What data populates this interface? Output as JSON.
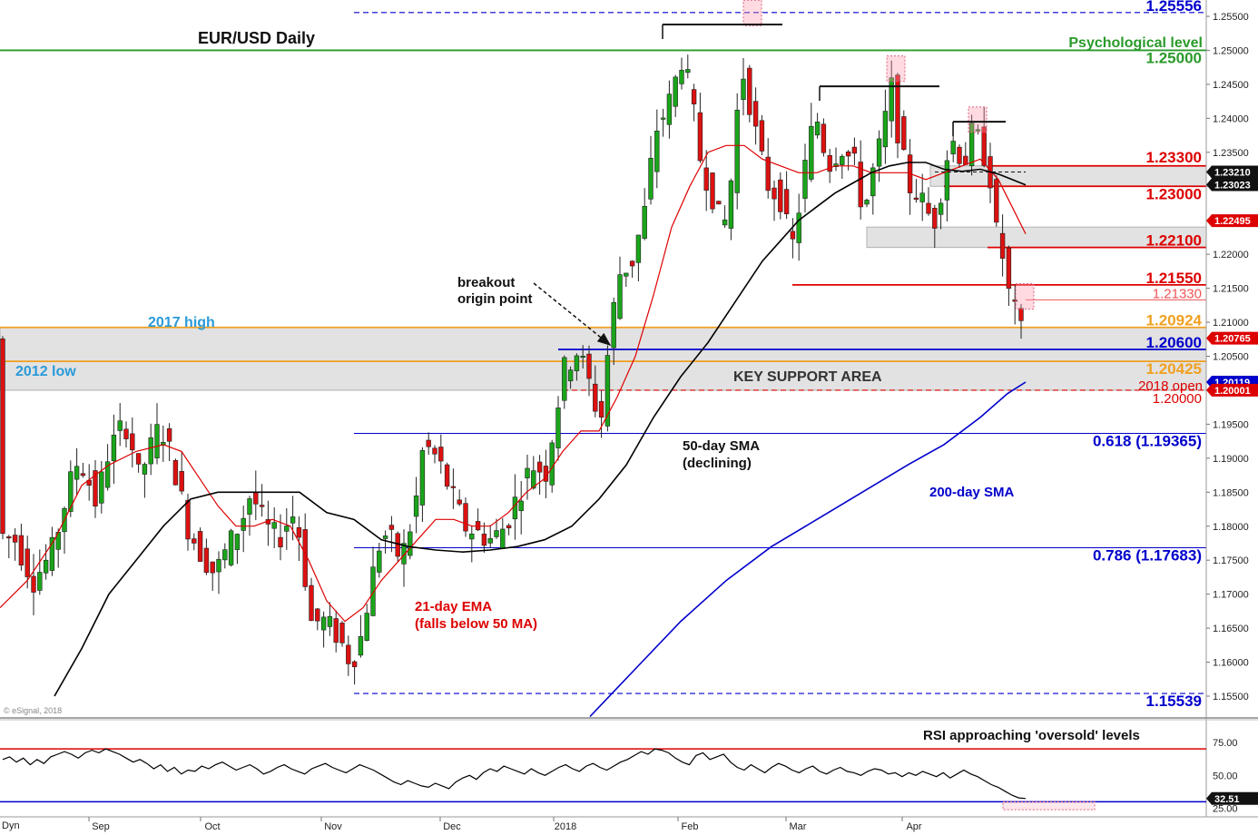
{
  "chart_data": [
    {
      "type": "candlestick",
      "title": "EUR/USD Daily",
      "ylim": [
        1.1515,
        1.2565
      ],
      "y_ticks": [
        "1.25500",
        "1.25000",
        "1.24500",
        "1.24000",
        "1.23500",
        "1.23000",
        "1.22500",
        "1.22000",
        "1.21500",
        "1.21000",
        "1.20500",
        "1.20000",
        "1.19500",
        "1.19000",
        "1.18500",
        "1.18000",
        "1.17500",
        "1.17000",
        "1.16500",
        "1.16000",
        "1.15500"
      ],
      "x_ticks": [
        "Sep",
        "Oct",
        "Nov",
        "Dec",
        "2018",
        "Feb",
        "Mar",
        "Apr"
      ],
      "levels": [
        {
          "name": "level-125556",
          "label": "1.25556",
          "value": 1.25556,
          "color": "#0000cc",
          "style": "dashed"
        },
        {
          "name": "level-125000",
          "label": "1.25000",
          "value": 1.25,
          "color": "#2a9a2a",
          "style": "solid"
        },
        {
          "name": "level-123300",
          "label": "1.23300",
          "value": 1.233,
          "color": "#dd0000",
          "style": "solid"
        },
        {
          "name": "level-123000",
          "label": "1.23000",
          "value": 1.23,
          "color": "#dd0000",
          "style": "solid"
        },
        {
          "name": "level-122100",
          "label": "1.22100",
          "value": 1.221,
          "color": "#dd0000",
          "style": "solid"
        },
        {
          "name": "level-121550",
          "label": "1.21550",
          "value": 1.2155,
          "color": "#dd0000",
          "style": "solid"
        },
        {
          "name": "level-121330",
          "label": "1.21330",
          "value": 1.2133,
          "color": "#ee5555",
          "style": "thin"
        },
        {
          "name": "level-120924",
          "label": "1.20924",
          "value": 1.20924,
          "color": "#f0a020",
          "style": "solid"
        },
        {
          "name": "level-120600",
          "label": "1.20600",
          "value": 1.206,
          "color": "#0000cc",
          "style": "solid"
        },
        {
          "name": "level-120425",
          "label": "1.20425",
          "value": 1.20425,
          "color": "#f0a020",
          "style": "solid"
        },
        {
          "name": "level-120000",
          "label": "1.20000",
          "value": 1.2,
          "color": "#dd0000",
          "style": "dashed"
        },
        {
          "name": "level-fib-0618",
          "label": "0.618 (1.19365)",
          "value": 1.19365,
          "color": "#0000cc",
          "style": "thin"
        },
        {
          "name": "level-fib-0786",
          "label": "0.786 (1.17683)",
          "value": 1.17683,
          "color": "#0000cc",
          "style": "thin"
        },
        {
          "name": "level-115539",
          "label": "1.15539",
          "value": 1.15539,
          "color": "#0000cc",
          "style": "dashed"
        }
      ],
      "price_tags": [
        {
          "name": "tag-123210",
          "label": "1.23210",
          "value": 1.2321,
          "color": "#111111"
        },
        {
          "name": "tag-123023",
          "label": "1.23023",
          "value": 1.23023,
          "color": "#111111"
        },
        {
          "name": "tag-122495",
          "label": "1.22495",
          "value": 1.22495,
          "color": "#dd0000"
        },
        {
          "name": "tag-120765",
          "label": "1.20765",
          "value": 1.20765,
          "color": "#dd0000"
        },
        {
          "name": "tag-120119",
          "label": "1.20119",
          "value": 1.20119,
          "color": "#0000cc"
        },
        {
          "name": "tag-120001",
          "label": "1.20001",
          "value": 1.20001,
          "color": "#dd0000"
        }
      ],
      "zones": [
        {
          "name": "key-support-zone",
          "low": 1.2,
          "high": 1.20924
        },
        {
          "name": "resistance-zone-upper",
          "low": 1.23,
          "high": 1.233
        },
        {
          "name": "resistance-zone-lower",
          "low": 1.221,
          "high": 1.224
        }
      ],
      "annotations": {
        "title": "EUR/USD Daily",
        "psych": "Psychological level",
        "high2017": "2017 high",
        "low2012": "2012 low",
        "breakout1": "breakout",
        "breakout2": "origin point",
        "key_support": "KEY SUPPORT AREA",
        "open2018": "2018 open",
        "sma50_1": "50-day SMA",
        "sma50_2": "(declining)",
        "sma200": "200-day SMA",
        "ema21_1": "21-day EMA",
        "ema21_2": "(falls below 50 MA)",
        "copyright": "© eSignal, 2018"
      },
      "series": [
        {
          "name": "21-day EMA",
          "color": "#dd0000",
          "points": [
            [
              0,
              1.168
            ],
            [
              30,
              1.172
            ],
            [
              60,
              1.178
            ],
            [
              90,
              1.186
            ],
            [
              120,
              1.189
            ],
            [
              150,
              1.191
            ],
            [
              180,
              1.192
            ],
            [
              200,
              1.191
            ],
            [
              220,
              1.187
            ],
            [
              240,
              1.183
            ],
            [
              260,
              1.18
            ],
            [
              280,
              1.18
            ],
            [
              300,
              1.181
            ],
            [
              320,
              1.18
            ],
            [
              340,
              1.175
            ],
            [
              360,
              1.169
            ],
            [
              380,
              1.166
            ],
            [
              400,
              1.168
            ],
            [
              420,
              1.172
            ],
            [
              440,
              1.175
            ],
            [
              460,
              1.178
            ],
            [
              480,
              1.181
            ],
            [
              500,
              1.181
            ],
            [
              520,
              1.18
            ],
            [
              540,
              1.18
            ],
            [
              560,
              1.182
            ],
            [
              580,
              1.185
            ],
            [
              600,
              1.187
            ],
            [
              620,
              1.191
            ],
            [
              640,
              1.194
            ],
            [
              660,
              1.194
            ],
            [
              680,
              1.199
            ],
            [
              700,
              1.205
            ],
            [
              720,
              1.214
            ],
            [
              740,
              1.224
            ],
            [
              760,
              1.23
            ],
            [
              780,
              1.235
            ],
            [
              800,
              1.236
            ],
            [
              820,
              1.236
            ],
            [
              840,
              1.234
            ],
            [
              860,
              1.233
            ],
            [
              880,
              1.232
            ],
            [
              900,
              1.232
            ],
            [
              920,
              1.233
            ],
            [
              940,
              1.233
            ],
            [
              960,
              1.232
            ],
            [
              980,
              1.232
            ],
            [
              1000,
              1.232
            ],
            [
              1020,
              1.231
            ],
            [
              1040,
              1.232
            ],
            [
              1060,
              1.233
            ],
            [
              1080,
              1.234
            ],
            [
              1100,
              1.231
            ],
            [
              1115,
              1.227
            ],
            [
              1130,
              1.223
            ]
          ]
        },
        {
          "name": "50-day SMA",
          "color": "#000000",
          "points": [
            [
              60,
              1.155
            ],
            [
              90,
              1.162
            ],
            [
              120,
              1.17
            ],
            [
              150,
              1.175
            ],
            [
              180,
              1.18
            ],
            [
              210,
              1.184
            ],
            [
              240,
              1.185
            ],
            [
              270,
              1.185
            ],
            [
              300,
              1.185
            ],
            [
              330,
              1.185
            ],
            [
              360,
              1.182
            ],
            [
              390,
              1.181
            ],
            [
              420,
              1.178
            ],
            [
              450,
              1.177
            ],
            [
              480,
              1.1765
            ],
            [
              510,
              1.1762
            ],
            [
              540,
              1.1765
            ],
            [
              570,
              1.177
            ],
            [
              600,
              1.178
            ],
            [
              630,
              1.18
            ],
            [
              660,
              1.184
            ],
            [
              690,
              1.189
            ],
            [
              720,
              1.196
            ],
            [
              750,
              1.202
            ],
            [
              780,
              1.207
            ],
            [
              800,
              1.211
            ],
            [
              820,
              1.215
            ],
            [
              840,
              1.219
            ],
            [
              860,
              1.222
            ],
            [
              880,
              1.225
            ],
            [
              900,
              1.227
            ],
            [
              920,
              1.229
            ],
            [
              940,
              1.2305
            ],
            [
              960,
              1.232
            ],
            [
              980,
              1.233
            ],
            [
              1000,
              1.2335
            ],
            [
              1020,
              1.2335
            ],
            [
              1040,
              1.2325
            ],
            [
              1060,
              1.2322
            ],
            [
              1080,
              1.2325
            ],
            [
              1100,
              1.2318
            ],
            [
              1115,
              1.231
            ],
            [
              1130,
              1.2302
            ]
          ]
        },
        {
          "name": "200-day SMA",
          "color": "#0000cc",
          "points": [
            [
              650,
              1.152
            ],
            [
              700,
              1.159
            ],
            [
              750,
              1.166
            ],
            [
              800,
              1.172
            ],
            [
              850,
              1.177
            ],
            [
              900,
              1.181
            ],
            [
              950,
              1.185
            ],
            [
              1000,
              1.189
            ],
            [
              1040,
              1.192
            ],
            [
              1080,
              1.196
            ],
            [
              1110,
              1.1995
            ],
            [
              1130,
              1.20119
            ]
          ]
        }
      ],
      "annotation_boxes": [
        {
          "name": "high-marker-feb",
          "x": 829,
          "value": 1.2555
        },
        {
          "name": "high-marker-mar",
          "x": 987,
          "value": 1.2473
        },
        {
          "name": "high-marker-apr",
          "x": 1077,
          "value": 1.2398
        },
        {
          "name": "low-marker-apr",
          "x": 1129,
          "value": 1.2138
        }
      ],
      "top_lines": [
        {
          "name": "double-top-line-1",
          "x1": 730,
          "x2": 862,
          "value": 1.2538
        },
        {
          "name": "double-top-line-2",
          "x1": 903,
          "x2": 1035,
          "value": 1.2447
        },
        {
          "name": "double-top-line-3",
          "x1": 1050,
          "x2": 1108,
          "value": 1.2395
        }
      ]
    },
    {
      "type": "line",
      "title": "RSI approaching 'oversold' levels",
      "ylim": [
        20,
        90
      ],
      "y_ticks": [
        "75.00",
        "50.00",
        "25.00"
      ],
      "overbought": 70,
      "oversold": 30,
      "last_value_label": "32.51",
      "last_value": 32.51,
      "series": [
        {
          "name": "RSI",
          "color": "#000000",
          "values": [
            62,
            64,
            60,
            63,
            58,
            62,
            59,
            64,
            66,
            68,
            66,
            63,
            67,
            69,
            67,
            70,
            68,
            66,
            63,
            60,
            62,
            59,
            55,
            58,
            53,
            56,
            51,
            54,
            53,
            57,
            55,
            58,
            60,
            57,
            54,
            56,
            58,
            55,
            51,
            53,
            56,
            58,
            55,
            53,
            51,
            55,
            57,
            59,
            56,
            54,
            52,
            55,
            58,
            56,
            54,
            51,
            48,
            45,
            43,
            46,
            44,
            42,
            41,
            44,
            42,
            40,
            45,
            48,
            50,
            47,
            52,
            55,
            53,
            57,
            55,
            53,
            51,
            55,
            52,
            50,
            53,
            56,
            58,
            55,
            53,
            57,
            59,
            56,
            54,
            57,
            60,
            62,
            65,
            68,
            66,
            70,
            69,
            67,
            63,
            60,
            58,
            65,
            67,
            62,
            64,
            66,
            60,
            56,
            54,
            58,
            55,
            52,
            56,
            59,
            57,
            54,
            52,
            55,
            57,
            53,
            51,
            54,
            56,
            53,
            52,
            50,
            53,
            55,
            54,
            51,
            52,
            49,
            52,
            50,
            53,
            51,
            49,
            52,
            48,
            51,
            54,
            51,
            49,
            46,
            43,
            41,
            38,
            35,
            33,
            32.51
          ]
        }
      ],
      "highlight_box": {
        "name": "rsi-oversold-box",
        "x1": 1105,
        "x2": 1206,
        "low": 24,
        "high": 30
      }
    }
  ]
}
